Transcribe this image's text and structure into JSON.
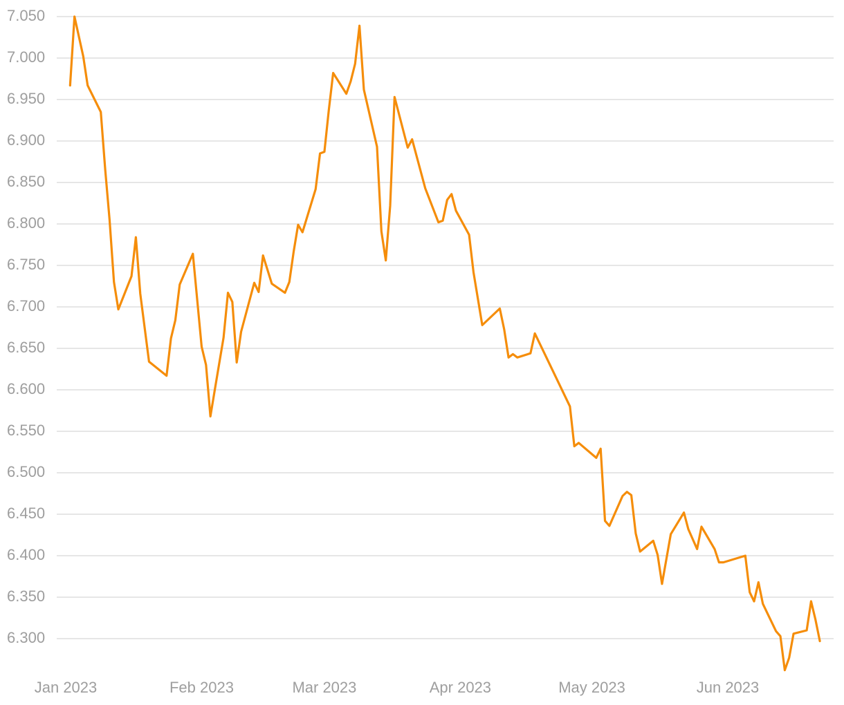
{
  "chart_data": {
    "type": "line",
    "x": [
      "2023-01-02",
      "2023-01-03",
      "2023-01-05",
      "2023-01-06",
      "2023-01-09",
      "2023-01-10",
      "2023-01-11",
      "2023-01-12",
      "2023-01-13",
      "2023-01-16",
      "2023-01-17",
      "2023-01-18",
      "2023-01-20",
      "2023-01-24",
      "2023-01-25",
      "2023-01-26",
      "2023-01-27",
      "2023-01-30",
      "2023-02-01",
      "2023-02-02",
      "2023-02-03",
      "2023-02-04",
      "2023-02-06",
      "2023-02-07",
      "2023-02-08",
      "2023-02-09",
      "2023-02-10",
      "2023-02-13",
      "2023-02-14",
      "2023-02-15",
      "2023-02-17",
      "2023-02-20",
      "2023-02-21",
      "2023-02-22",
      "2023-02-23",
      "2023-02-24",
      "2023-02-27",
      "2023-02-28",
      "2023-03-01",
      "2023-03-02",
      "2023-03-03",
      "2023-03-06",
      "2023-03-07",
      "2023-03-08",
      "2023-03-09",
      "2023-03-10",
      "2023-03-13",
      "2023-03-14",
      "2023-03-15",
      "2023-03-16",
      "2023-03-17",
      "2023-03-20",
      "2023-03-21",
      "2023-03-24",
      "2023-03-27",
      "2023-03-28",
      "2023-03-29",
      "2023-03-30",
      "2023-03-31",
      "2023-04-03",
      "2023-04-04",
      "2023-04-06",
      "2023-04-10",
      "2023-04-11",
      "2023-04-12",
      "2023-04-13",
      "2023-04-14",
      "2023-04-17",
      "2023-04-18",
      "2023-04-26",
      "2023-04-27",
      "2023-04-28",
      "2023-05-02",
      "2023-05-03",
      "2023-05-04",
      "2023-05-05",
      "2023-05-08",
      "2023-05-09",
      "2023-05-10",
      "2023-05-11",
      "2023-05-12",
      "2023-05-15",
      "2023-05-16",
      "2023-05-17",
      "2023-05-19",
      "2023-05-22",
      "2023-05-23",
      "2023-05-25",
      "2023-05-26",
      "2023-05-29",
      "2023-05-30",
      "2023-05-31",
      "2023-06-05",
      "2023-06-06",
      "2023-06-07",
      "2023-06-08",
      "2023-06-09",
      "2023-06-12",
      "2023-06-13",
      "2023-06-14",
      "2023-06-15",
      "2023-06-16",
      "2023-06-19",
      "2023-06-20",
      "2023-06-21",
      "2023-06-22"
    ],
    "series": [
      {
        "color": "#f58d0a",
        "values": [
          6.967,
          7.05,
          7.002,
          6.967,
          6.935,
          6.866,
          6.805,
          6.73,
          6.697,
          6.737,
          6.784,
          6.716,
          6.634,
          6.617,
          6.662,
          6.684,
          6.727,
          6.764,
          6.652,
          6.63,
          6.568,
          6.6,
          6.663,
          6.717,
          6.706,
          6.633,
          6.67,
          6.729,
          6.718,
          6.762,
          6.728,
          6.717,
          6.73,
          6.767,
          6.799,
          6.79,
          6.842,
          6.885,
          6.887,
          6.937,
          6.982,
          6.957,
          6.972,
          6.993,
          7.039,
          6.962,
          6.893,
          6.791,
          6.756,
          6.822,
          6.953,
          6.892,
          6.902,
          6.843,
          6.802,
          6.804,
          6.829,
          6.836,
          6.816,
          6.787,
          6.742,
          6.678,
          6.698,
          6.673,
          6.639,
          6.643,
          6.639,
          6.644,
          6.668,
          6.58,
          6.532,
          6.536,
          6.518,
          6.529,
          6.442,
          6.436,
          6.472,
          6.477,
          6.473,
          6.427,
          6.405,
          6.418,
          6.401,
          6.366,
          6.426,
          6.452,
          6.432,
          6.408,
          6.435,
          6.408,
          6.392,
          6.392,
          6.4,
          6.356,
          6.345,
          6.368,
          6.342,
          6.309,
          6.303,
          6.262,
          6.277,
          6.306,
          6.31,
          6.345,
          6.323,
          6.297
        ]
      }
    ],
    "ylim": [
      6.25,
      7.05
    ],
    "yticks": [
      {
        "value": 7.05,
        "label": "7.050"
      },
      {
        "value": 7.0,
        "label": "7.000"
      },
      {
        "value": 6.95,
        "label": "6.950"
      },
      {
        "value": 6.9,
        "label": "6.900"
      },
      {
        "value": 6.85,
        "label": "6.850"
      },
      {
        "value": 6.8,
        "label": "6.800"
      },
      {
        "value": 6.75,
        "label": "6.750"
      },
      {
        "value": 6.7,
        "label": "6.700"
      },
      {
        "value": 6.65,
        "label": "6.650"
      },
      {
        "value": 6.6,
        "label": "6.600"
      },
      {
        "value": 6.55,
        "label": "6.550"
      },
      {
        "value": 6.5,
        "label": "6.500"
      },
      {
        "value": 6.45,
        "label": "6.450"
      },
      {
        "value": 6.4,
        "label": "6.400"
      },
      {
        "value": 6.35,
        "label": "6.350"
      },
      {
        "value": 6.3,
        "label": "6.300"
      }
    ],
    "xticks": [
      {
        "value": "2023-01-01",
        "label": "Jan 2023"
      },
      {
        "value": "2023-02-01",
        "label": "Feb 2023"
      },
      {
        "value": "2023-03-01",
        "label": "Mar 2023"
      },
      {
        "value": "2023-04-01",
        "label": "Apr 2023"
      },
      {
        "value": "2023-05-01",
        "label": "May 2023"
      },
      {
        "value": "2023-06-01",
        "label": "Jun 2023"
      }
    ],
    "grid": true
  }
}
